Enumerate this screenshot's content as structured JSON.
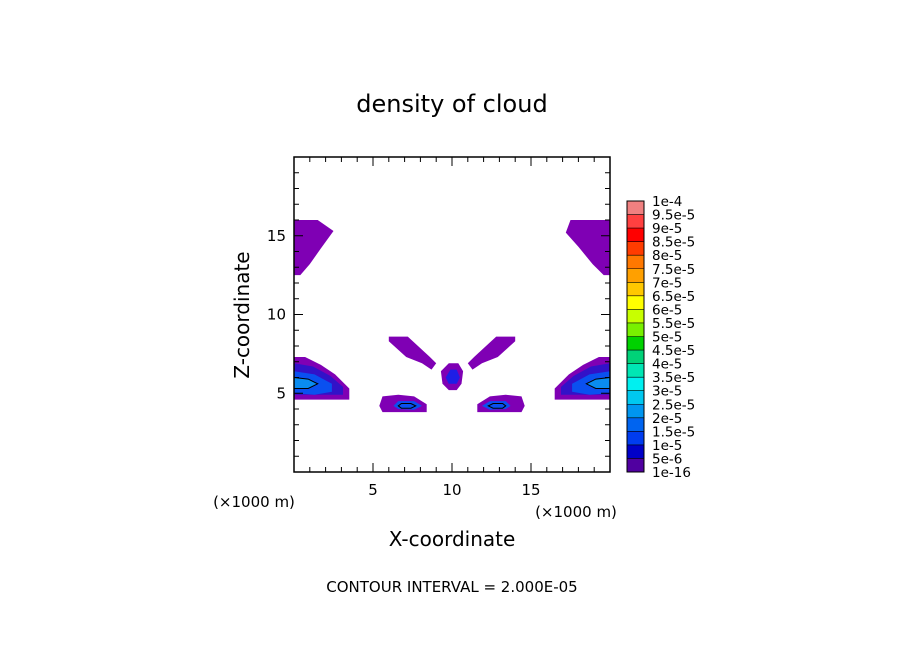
{
  "chart_data": {
    "type": "heatmap",
    "title": "density of cloud",
    "xlabel": "X-coordinate",
    "ylabel": "Z-coordinate",
    "x_unit": "(×1000 m)",
    "z_unit": "(×1000 m)",
    "footer": "CONTOUR INTERVAL = 2.000E-05",
    "xlim": [
      0,
      20
    ],
    "ylim": [
      0,
      20
    ],
    "x_ticks": [
      5,
      10,
      15
    ],
    "y_ticks": [
      5,
      10,
      15
    ],
    "colorbar": {
      "labels": [
        "1e-4",
        "9.5e-5",
        "9e-5",
        "8.5e-5",
        "8e-5",
        "7.5e-5",
        "7e-5",
        "6.5e-5",
        "6e-5",
        "5.5e-5",
        "5e-5",
        "4.5e-5",
        "4e-5",
        "3.5e-5",
        "3e-5",
        "2.5e-5",
        "2e-5",
        "1.5e-5",
        "1e-5",
        "5e-6",
        "1e-16"
      ],
      "colors": [
        "#f08080",
        "#ff4040",
        "#ff0000",
        "#ff3c00",
        "#ff7800",
        "#ffa000",
        "#ffc800",
        "#ffff00",
        "#c8ff00",
        "#78f000",
        "#00d200",
        "#00d278",
        "#00e6b4",
        "#00f0f0",
        "#00c8f0",
        "#0096f0",
        "#0064f0",
        "#003cf0",
        "#0000c8",
        "#5000a0"
      ]
    },
    "regions": [
      {
        "name": "upper-left cloud",
        "level": "1e-16",
        "polygon": [
          [
            0,
            16
          ],
          [
            1.5,
            16
          ],
          [
            2.5,
            15.3
          ],
          [
            1.7,
            14.2
          ],
          [
            1,
            13.2
          ],
          [
            0.4,
            12.5
          ],
          [
            0,
            12.5
          ]
        ]
      },
      {
        "name": "upper-right cloud",
        "level": "1e-16",
        "polygon": [
          [
            20,
            16
          ],
          [
            17.5,
            16
          ],
          [
            17.2,
            15.2
          ],
          [
            18,
            14.3
          ],
          [
            18.9,
            13.2
          ],
          [
            19.6,
            12.5
          ],
          [
            20,
            12.5
          ]
        ]
      },
      {
        "name": "left cloud outer",
        "level": "1e-16",
        "polygon": [
          [
            0,
            7.3
          ],
          [
            0.7,
            7.3
          ],
          [
            1.7,
            6.8
          ],
          [
            2.6,
            6.2
          ],
          [
            3.5,
            5.3
          ],
          [
            3.5,
            4.6
          ],
          [
            0,
            4.6
          ]
        ]
      },
      {
        "name": "left cloud mid",
        "level": "5e-6",
        "polygon": [
          [
            0,
            6.9
          ],
          [
            1.2,
            6.7
          ],
          [
            2.3,
            6.1
          ],
          [
            3.1,
            5.4
          ],
          [
            3.1,
            4.9
          ],
          [
            0,
            4.9
          ]
        ]
      },
      {
        "name": "left cloud core",
        "level": "1.5e-5",
        "polygon": [
          [
            0,
            6.4
          ],
          [
            1.3,
            6.2
          ],
          [
            2.4,
            5.6
          ],
          [
            2.4,
            5.1
          ],
          [
            1.3,
            4.9
          ],
          [
            0,
            5
          ]
        ]
      },
      {
        "name": "left cloud center",
        "level": "2.5e-5",
        "polygon": [
          [
            0,
            6.0
          ],
          [
            0.9,
            5.9
          ],
          [
            1.5,
            5.6
          ],
          [
            0.9,
            5.3
          ],
          [
            0,
            5.3
          ]
        ]
      },
      {
        "name": "right cloud outer",
        "level": "1e-16",
        "polygon": [
          [
            20,
            7.3
          ],
          [
            19.3,
            7.3
          ],
          [
            18.3,
            6.8
          ],
          [
            17.4,
            6.2
          ],
          [
            16.5,
            5.3
          ],
          [
            16.5,
            4.6
          ],
          [
            20,
            4.6
          ]
        ]
      },
      {
        "name": "right cloud mid",
        "level": "5e-6",
        "polygon": [
          [
            20,
            6.9
          ],
          [
            18.8,
            6.7
          ],
          [
            17.7,
            6.1
          ],
          [
            16.9,
            5.4
          ],
          [
            16.9,
            4.9
          ],
          [
            20,
            4.9
          ]
        ]
      },
      {
        "name": "right cloud core",
        "level": "1.5e-5",
        "polygon": [
          [
            20,
            6.4
          ],
          [
            18.7,
            6.2
          ],
          [
            17.6,
            5.6
          ],
          [
            17.6,
            5.1
          ],
          [
            18.7,
            4.9
          ],
          [
            20,
            5
          ]
        ]
      },
      {
        "name": "right cloud center",
        "level": "2.5e-5",
        "polygon": [
          [
            20,
            6.0
          ],
          [
            19.1,
            5.9
          ],
          [
            18.5,
            5.6
          ],
          [
            19.1,
            5.3
          ],
          [
            20,
            5.3
          ]
        ]
      },
      {
        "name": "left arm",
        "level": "1e-16",
        "polygon": [
          [
            6,
            8.6
          ],
          [
            7.2,
            8.6
          ],
          [
            8.6,
            7.3
          ],
          [
            9,
            6.9
          ],
          [
            8.7,
            6.5
          ],
          [
            8.1,
            6.9
          ],
          [
            7.1,
            7.3
          ],
          [
            6,
            8.3
          ]
        ]
      },
      {
        "name": "right arm",
        "level": "1e-16",
        "polygon": [
          [
            14,
            8.6
          ],
          [
            12.8,
            8.6
          ],
          [
            11.4,
            7.3
          ],
          [
            11,
            6.9
          ],
          [
            11.3,
            6.5
          ],
          [
            11.9,
            6.9
          ],
          [
            12.9,
            7.3
          ],
          [
            14,
            8.3
          ]
        ]
      },
      {
        "name": "center blob outer",
        "level": "1e-16",
        "polygon": [
          [
            9.8,
            6.9
          ],
          [
            10.4,
            6.9
          ],
          [
            10.7,
            6.4
          ],
          [
            10.6,
            5.6
          ],
          [
            10.3,
            5.2
          ],
          [
            9.8,
            5.2
          ],
          [
            9.4,
            5.6
          ],
          [
            9.3,
            6.4
          ]
        ]
      },
      {
        "name": "center blob core",
        "level": "1e-5",
        "polygon": [
          [
            9.9,
            6.5
          ],
          [
            10.3,
            6.5
          ],
          [
            10.5,
            6.0
          ],
          [
            10.3,
            5.6
          ],
          [
            9.8,
            5.6
          ],
          [
            9.6,
            6.0
          ]
        ]
      },
      {
        "name": "lower-left cloud",
        "level": "1e-16",
        "polygon": [
          [
            5.6,
            4.8
          ],
          [
            6.6,
            4.9
          ],
          [
            7.6,
            4.8
          ],
          [
            8.4,
            4.3
          ],
          [
            8.4,
            3.8
          ],
          [
            5.6,
            3.8
          ],
          [
            5.4,
            4.2
          ]
        ]
      },
      {
        "name": "lower-left core",
        "level": "1.5e-5",
        "polygon": [
          [
            6.6,
            4.5
          ],
          [
            7.6,
            4.5
          ],
          [
            8.1,
            4.2
          ],
          [
            7.6,
            3.95
          ],
          [
            6.6,
            4.0
          ],
          [
            6.3,
            4.2
          ]
        ]
      },
      {
        "name": "lower-right cloud",
        "level": "1e-16",
        "polygon": [
          [
            14.4,
            4.8
          ],
          [
            13.4,
            4.9
          ],
          [
            12.4,
            4.8
          ],
          [
            11.6,
            4.3
          ],
          [
            11.6,
            3.8
          ],
          [
            14.4,
            3.8
          ],
          [
            14.6,
            4.2
          ]
        ]
      },
      {
        "name": "lower-right core",
        "level": "1.5e-5",
        "polygon": [
          [
            13.4,
            4.5
          ],
          [
            12.4,
            4.5
          ],
          [
            11.9,
            4.2
          ],
          [
            12.4,
            3.95
          ],
          [
            13.4,
            4.0
          ],
          [
            13.7,
            4.2
          ]
        ]
      }
    ],
    "contour_lines": [
      {
        "name": "left contour",
        "level": "2e-5",
        "polygon": [
          [
            0,
            6.0
          ],
          [
            0.9,
            5.9
          ],
          [
            1.5,
            5.6
          ],
          [
            0.9,
            5.3
          ],
          [
            0,
            5.3
          ]
        ]
      },
      {
        "name": "right contour",
        "level": "2e-5",
        "polygon": [
          [
            20,
            6.0
          ],
          [
            19.1,
            5.9
          ],
          [
            18.5,
            5.6
          ],
          [
            19.1,
            5.3
          ],
          [
            20,
            5.3
          ]
        ]
      },
      {
        "name": "lower-left contour",
        "level": "2e-5",
        "polygon": [
          [
            6.8,
            4.35
          ],
          [
            7.4,
            4.35
          ],
          [
            7.7,
            4.2
          ],
          [
            7.4,
            4.05
          ],
          [
            6.8,
            4.05
          ],
          [
            6.6,
            4.2
          ]
        ]
      },
      {
        "name": "lower-right contour",
        "level": "2e-5",
        "polygon": [
          [
            13.2,
            4.35
          ],
          [
            12.6,
            4.35
          ],
          [
            12.3,
            4.2
          ],
          [
            12.6,
            4.05
          ],
          [
            13.2,
            4.05
          ],
          [
            13.4,
            4.2
          ]
        ]
      }
    ]
  }
}
